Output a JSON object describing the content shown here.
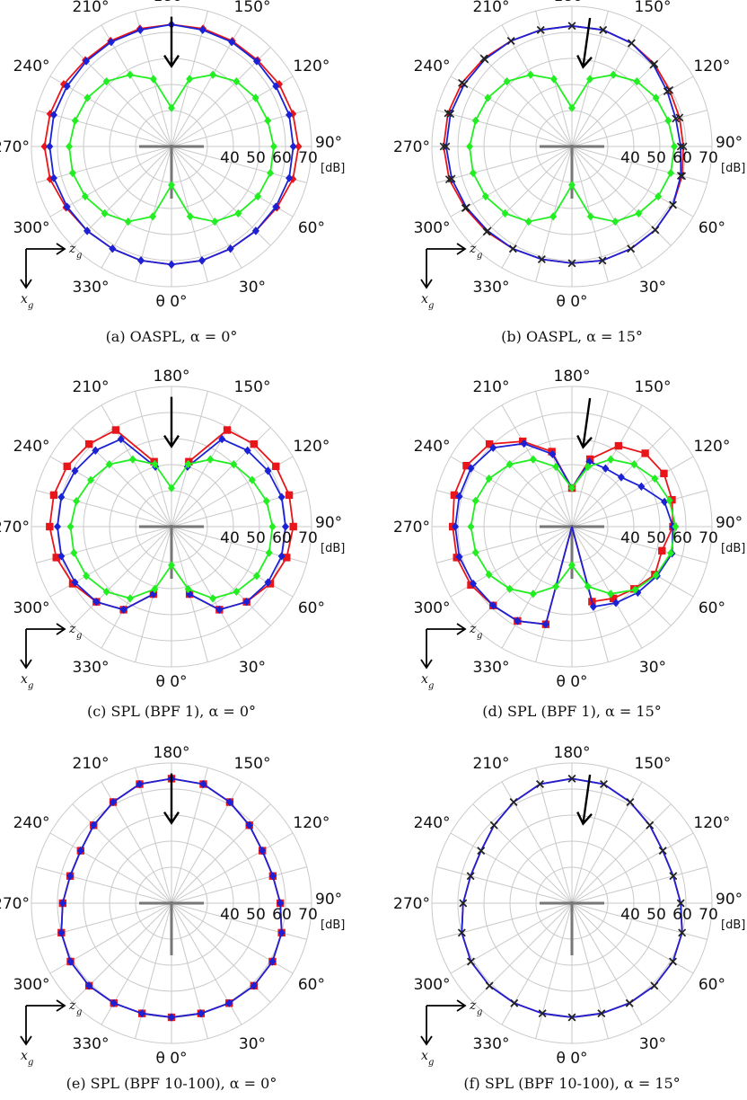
{
  "figure": {
    "theta_label": "θ 0°",
    "unit_label": "[dB]",
    "radial_tick_labels": [
      "40",
      "50",
      "60",
      "70"
    ],
    "angle_labels": [
      "30°",
      "60°",
      "90°",
      "120°",
      "150°",
      "180°",
      "210°",
      "240°",
      "270°",
      "300°",
      "330°"
    ],
    "axis_label_z": "z",
    "axis_label_z_sub": "g",
    "axis_label_x": "x",
    "axis_label_x_sub": "g",
    "colors": {
      "red": "#e8151a",
      "blue": "#1b22d6",
      "green": "#22ee22",
      "grid": "#c9c9c9",
      "center_cross": "#777777",
      "arrow": "#000000"
    }
  },
  "chart_data": [
    {
      "type": "polar-line",
      "caption": "(a) OASPL, α = 0°",
      "rlim": [
        30,
        70
      ],
      "grid": true,
      "theta_convention": "0° at bottom, 90° at right, clockwise",
      "arrow_angle": 180,
      "series": [
        {
          "color": "red",
          "marker": "diamond",
          "theta": [
            0,
            15,
            30,
            45,
            60,
            75,
            90,
            105,
            120,
            135,
            150,
            165,
            180,
            195,
            210,
            225,
            240,
            255,
            270,
            285,
            300,
            315,
            330,
            345
          ],
          "r": [
            61.5,
            61.5,
            61.5,
            62.0,
            63.0,
            64.5,
            65.0,
            64.5,
            64.0,
            63.0,
            63.0,
            63.0,
            63.0,
            63.0,
            63.0,
            63.0,
            64.0,
            64.5,
            65.0,
            64.5,
            63.0,
            62.0,
            61.5,
            61.5
          ]
        },
        {
          "color": "blue",
          "marker": "diamond",
          "theta": [
            0,
            15,
            30,
            45,
            60,
            75,
            90,
            105,
            120,
            135,
            150,
            165,
            180,
            195,
            210,
            225,
            240,
            255,
            270,
            285,
            300,
            315,
            330,
            345
          ],
          "r": [
            61.5,
            61.5,
            61.5,
            62.0,
            62.5,
            63.0,
            63.0,
            63.0,
            62.5,
            62.5,
            62.5,
            62.5,
            63.0,
            62.5,
            62.5,
            62.5,
            62.5,
            63.0,
            63.0,
            63.0,
            62.5,
            62.0,
            61.5,
            61.5
          ]
        },
        {
          "color": "green",
          "marker": "diamond",
          "theta": [
            0,
            15,
            30,
            45,
            60,
            75,
            90,
            105,
            120,
            135,
            150,
            165,
            180,
            195,
            210,
            225,
            240,
            255,
            270,
            285,
            300,
            315,
            330,
            345
          ],
          "r": [
            31,
            44,
            49.5,
            52.5,
            54.5,
            55.5,
            55.5,
            54.5,
            53.5,
            51.5,
            48,
            43,
            31,
            43,
            48,
            51.5,
            53.5,
            54.5,
            55.5,
            55.5,
            54.5,
            52.5,
            49.5,
            44
          ]
        }
      ]
    },
    {
      "type": "polar-line",
      "caption": "(b) OASPL, α = 15°",
      "rlim": [
        30,
        70
      ],
      "grid": true,
      "theta_convention": "0° at bottom, 90° at right, clockwise",
      "arrow_angle": 172,
      "series": [
        {
          "color": "red",
          "marker": "x",
          "theta": [
            0,
            15,
            30,
            45,
            60,
            75,
            90,
            105,
            120,
            135,
            150,
            165,
            180,
            195,
            210,
            225,
            240,
            255,
            270,
            285,
            300,
            315,
            330,
            345
          ],
          "r": [
            61,
            61.5,
            61.5,
            61.5,
            61,
            60,
            59,
            59,
            59.5,
            61,
            62,
            62.5,
            62.5,
            62.5,
            63,
            64,
            65,
            65.5,
            65.5,
            65,
            63.5,
            62.5,
            61.5,
            61
          ]
        },
        {
          "color": "blue",
          "marker": "x",
          "theta": [
            0,
            15,
            30,
            45,
            60,
            75,
            90,
            105,
            120,
            135,
            150,
            165,
            180,
            195,
            210,
            225,
            240,
            255,
            270,
            285,
            300,
            315,
            330,
            345
          ],
          "r": [
            61,
            61.5,
            61.5,
            61.5,
            61,
            59.5,
            58,
            57.5,
            58.5,
            60.5,
            62,
            62.5,
            62.5,
            62.5,
            63,
            63.5,
            64,
            64.5,
            64.5,
            64,
            63,
            62,
            61.5,
            61
          ]
        },
        {
          "color": "green",
          "marker": "diamond",
          "theta": [
            0,
            15,
            30,
            45,
            60,
            75,
            90,
            105,
            120,
            135,
            150,
            165,
            180,
            195,
            210,
            225,
            240,
            255,
            270,
            285,
            300,
            315,
            330,
            345
          ],
          "r": [
            31,
            44,
            49.5,
            52.5,
            54.5,
            55.5,
            55.5,
            54.5,
            53.5,
            51.5,
            48,
            43,
            31,
            43,
            48,
            51.5,
            53.5,
            54.5,
            55.5,
            55.5,
            54.5,
            52.5,
            49.5,
            44
          ]
        }
      ]
    },
    {
      "type": "polar-line",
      "caption": "(c) SPL (BPF 1), α = 0°",
      "rlim": [
        30,
        70
      ],
      "grid": true,
      "theta_convention": "0° at bottom, 90° at right, clockwise",
      "arrow_angle": 180,
      "series": [
        {
          "color": "red",
          "marker": "square",
          "theta": [
            0,
            15,
            30,
            45,
            60,
            75,
            90,
            105,
            120,
            135,
            150,
            165,
            180,
            195,
            210,
            225,
            240,
            255,
            270,
            285,
            300,
            315,
            330,
            345
          ],
          "r": [
            null,
            43,
            53,
            57,
            60,
            62,
            63,
            63,
            62.5,
            61,
            59,
            42,
            null,
            42,
            59,
            61,
            62.5,
            63,
            63,
            62,
            60,
            57,
            53,
            43
          ]
        },
        {
          "color": "blue",
          "marker": "diamond",
          "theta": [
            0,
            15,
            30,
            45,
            60,
            75,
            90,
            105,
            120,
            135,
            150,
            165,
            180,
            195,
            210,
            225,
            240,
            255,
            270,
            285,
            300,
            315,
            330,
            345
          ],
          "r": [
            null,
            43,
            53,
            57,
            59,
            60,
            60,
            60,
            59,
            57.5,
            55,
            40,
            null,
            40,
            55,
            57.5,
            59,
            60,
            60,
            60,
            59,
            57,
            53,
            43
          ]
        },
        {
          "color": "green",
          "marker": "diamond",
          "theta": [
            0,
            15,
            30,
            45,
            60,
            75,
            90,
            105,
            120,
            135,
            150,
            165,
            180,
            195,
            210,
            225,
            240,
            255,
            270,
            285,
            300,
            315,
            330,
            345
          ],
          "r": [
            31,
            41,
            48,
            51.5,
            54,
            55,
            55,
            54,
            52,
            50,
            46,
            41,
            31,
            41,
            46,
            50,
            52,
            54,
            55,
            55,
            54,
            51.5,
            48,
            41
          ]
        }
      ]
    },
    {
      "type": "polar-line",
      "caption": "(d) SPL (BPF 1), α = 15°",
      "rlim": [
        30,
        70
      ],
      "grid": true,
      "theta_convention": "0° at bottom, 90° at right, clockwise",
      "arrow_angle": 172,
      "series": [
        {
          "color": "red",
          "marker": "square",
          "theta": [
            15,
            30,
            45,
            60,
            75,
            90,
            105,
            120,
            135,
            150,
            165,
            180,
            195,
            210,
            225,
            240,
            255,
            270,
            285,
            300,
            315,
            330,
            345
          ],
          "r": [
            46,
            48,
            50,
            53,
            52,
            55,
            56,
            57,
            56,
            52,
            43,
            31,
            46,
            54,
            61,
            63,
            63,
            62,
            62,
            61,
            59,
            58,
            55
          ]
        },
        {
          "color": "blue",
          "marker": "diamond",
          "theta": [
            15,
            30,
            45,
            60,
            75,
            90,
            105,
            120,
            135,
            150,
            165,
            180,
            195,
            210,
            225,
            240,
            255,
            270,
            285,
            300,
            315,
            330,
            345
          ],
          "r": [
            48,
            50,
            52,
            54,
            56,
            55,
            53,
            47,
            43,
            42,
            42,
            31,
            45,
            53,
            59,
            61,
            61,
            61,
            61,
            60,
            59,
            58,
            55
          ]
        },
        {
          "color": "green",
          "marker": "diamond",
          "theta": [
            0,
            15,
            30,
            45,
            60,
            75,
            90,
            105,
            120,
            135,
            150,
            165,
            180,
            195,
            210,
            225,
            240,
            255,
            270,
            285,
            300,
            315,
            330,
            345
          ],
          "r": [
            31,
            40,
            46,
            50.5,
            53.5,
            55.5,
            56,
            55,
            53,
            50,
            46,
            40,
            31,
            40,
            46,
            50,
            53,
            54.5,
            55,
            54.5,
            53,
            50,
            46,
            40
          ]
        }
      ]
    },
    {
      "type": "polar-line",
      "caption": "(e) SPL (BPF 10-100), α = 0°",
      "rlim": [
        30,
        70
      ],
      "grid": true,
      "theta_convention": "0° at bottom, 90° at right, clockwise",
      "arrow_angle": 180,
      "series": [
        {
          "color": "red",
          "marker": "square",
          "theta": [
            0,
            15,
            30,
            45,
            60,
            75,
            90,
            105,
            120,
            135,
            150,
            165,
            180,
            195,
            210,
            225,
            240,
            255,
            270,
            285,
            300,
            315,
            330,
            345
          ],
          "r": [
            60,
            60,
            60.5,
            61,
            61,
            60,
            58,
            56.5,
            56.5,
            58.5,
            61,
            63.5,
            64,
            63.5,
            61,
            58.5,
            56.5,
            56.5,
            58,
            60,
            61,
            61,
            60.5,
            60
          ]
        },
        {
          "color": "blue",
          "marker": "diamond",
          "theta": [
            0,
            15,
            30,
            45,
            60,
            75,
            90,
            105,
            120,
            135,
            150,
            165,
            180,
            195,
            210,
            225,
            240,
            255,
            270,
            285,
            300,
            315,
            330,
            345
          ],
          "r": [
            60,
            60,
            60.5,
            61,
            61,
            60,
            58,
            56.5,
            56.5,
            58.5,
            61,
            63.5,
            64,
            63.5,
            61,
            58.5,
            56.5,
            56.5,
            58,
            60,
            61,
            61,
            60.5,
            60
          ]
        }
      ]
    },
    {
      "type": "polar-line",
      "caption": "(f) SPL (BPF 10-100), α = 15°",
      "rlim": [
        30,
        70
      ],
      "grid": true,
      "theta_convention": "0° at bottom, 90° at right, clockwise",
      "arrow_angle": 172,
      "series": [
        {
          "color": "red",
          "marker": "x",
          "theta": [
            0,
            15,
            30,
            45,
            60,
            75,
            90,
            105,
            120,
            135,
            150,
            165,
            180,
            195,
            210,
            225,
            240,
            255,
            270,
            285,
            300,
            315,
            330,
            345
          ],
          "r": [
            60,
            60,
            60.5,
            61,
            61,
            60,
            58,
            56.5,
            56.5,
            58.5,
            61,
            63.5,
            64,
            63.5,
            61,
            58.5,
            56.5,
            56.5,
            58,
            60,
            61,
            61,
            60.5,
            60
          ]
        },
        {
          "color": "blue",
          "marker": "x",
          "theta": [
            0,
            15,
            30,
            45,
            60,
            75,
            90,
            105,
            120,
            135,
            150,
            165,
            180,
            195,
            210,
            225,
            240,
            255,
            270,
            285,
            300,
            315,
            330,
            345
          ],
          "r": [
            60,
            60,
            60.5,
            61,
            61,
            60,
            58,
            56.5,
            56.5,
            58.5,
            61,
            63.5,
            64,
            63.5,
            61,
            58.5,
            56.5,
            56.5,
            58,
            60,
            61,
            61,
            60.5,
            60
          ]
        }
      ]
    }
  ]
}
